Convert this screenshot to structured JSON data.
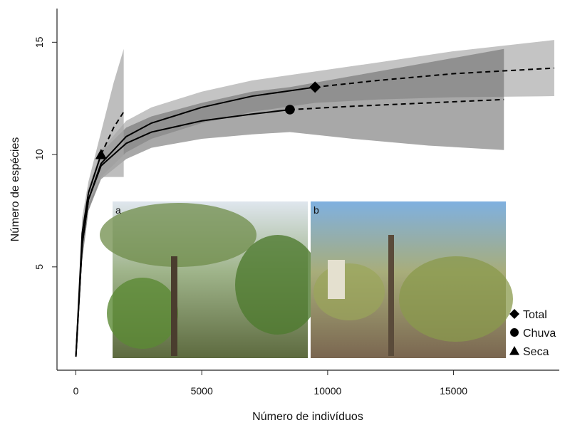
{
  "chart_data": {
    "type": "rarefaction",
    "x_label": "Número de indivíduos",
    "y_label": "Número de espécies",
    "xlim": [
      -750,
      19200
    ],
    "ylim": [
      0.4,
      16.5
    ],
    "xticks": [
      0,
      5000,
      10000,
      15000
    ],
    "yticks": [
      5,
      10,
      15
    ],
    "legend_position": "bottom-right",
    "series": [
      {
        "name": "Total",
        "marker": "diamond",
        "color": "#000000",
        "band_color": "#c4c4c4",
        "band_opacity": 1,
        "x": [
          0,
          250,
          500,
          1000,
          2000,
          3000,
          5000,
          7000,
          9500,
          12000,
          15000,
          19000
        ],
        "values": [
          1,
          6,
          8,
          9.6,
          10.8,
          11.4,
          12.1,
          12.6,
          13.0,
          13.3,
          13.6,
          13.85
        ],
        "lower": [
          1,
          5.3,
          7.5,
          9.0,
          10.1,
          10.7,
          11.4,
          11.9,
          12.3,
          12.45,
          12.55,
          12.6
        ],
        "upper": [
          1,
          6.7,
          8.5,
          10.2,
          11.5,
          12.1,
          12.8,
          13.3,
          13.7,
          14.1,
          14.6,
          15.1
        ],
        "observed": {
          "x": 9500,
          "y": 13.0
        }
      },
      {
        "name": "Chuva",
        "marker": "circle",
        "color": "#000000",
        "band_color": "#6e6e6e",
        "band_opacity": 0.6,
        "x": [
          0,
          250,
          500,
          1000,
          2000,
          3000,
          5000,
          7000,
          8500,
          11000,
          14000,
          17000
        ],
        "values": [
          1,
          6,
          8,
          9.5,
          10.5,
          11,
          11.5,
          11.8,
          12.0,
          12.15,
          12.3,
          12.45
        ],
        "lower": [
          1,
          5.3,
          7.5,
          8.9,
          9.8,
          10.3,
          10.7,
          10.9,
          11.0,
          10.7,
          10.4,
          10.2
        ],
        "upper": [
          1,
          6.7,
          8.5,
          10.1,
          11.2,
          11.7,
          12.3,
          12.8,
          13.0,
          13.5,
          14.1,
          14.7
        ],
        "observed": {
          "x": 8500,
          "y": 12.0
        }
      },
      {
        "name": "Seca",
        "marker": "triangle",
        "color": "#000000",
        "band_color": "#a8a8a8",
        "band_opacity": 0.75,
        "x": [
          0,
          250,
          500,
          1000,
          1500,
          1900
        ],
        "values": [
          1,
          6.5,
          8.3,
          10.0,
          11.2,
          11.9
        ],
        "lower": [
          1,
          5.8,
          7.8,
          9.0,
          9.0,
          9.0
        ],
        "upper": [
          1,
          7.2,
          8.8,
          11.0,
          13.2,
          14.7
        ],
        "observed": {
          "x": 1000,
          "y": 10.0
        }
      }
    ],
    "insets": [
      {
        "label": "a"
      },
      {
        "label": "b"
      }
    ]
  }
}
